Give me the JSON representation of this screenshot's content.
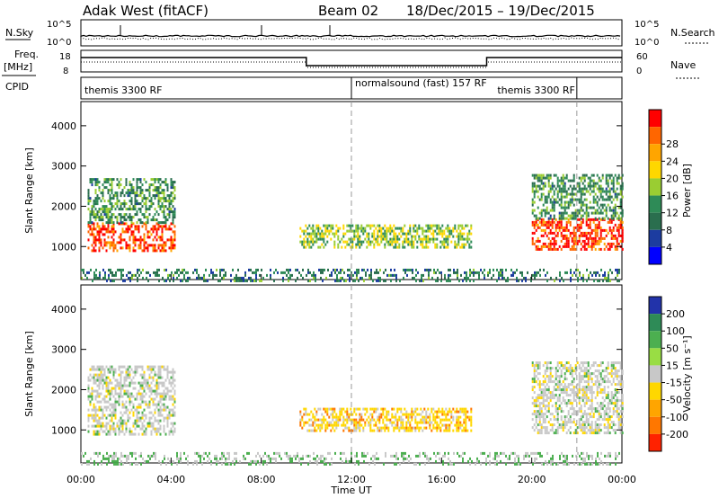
{
  "header": {
    "radar": "Adak West (fitACF)",
    "beam": "Beam 02",
    "date_range": "18/Dec/2015 – 19/Dec/2015"
  },
  "side_labels": {
    "nsky": "N.Sky",
    "nsearch": "N.Search",
    "freq_line1": "Freq.",
    "freq_line2": "[MHz]",
    "nave": "Nave",
    "cpid": "CPID"
  },
  "strip_ticks": {
    "noise_top_left": "10^5",
    "noise_bottom_left": "10^0",
    "noise_top_right": "10^5",
    "noise_bottom_right": "10^0",
    "freq_top": "18",
    "freq_bottom": "8",
    "nave_top": "60",
    "nave_bottom": "0"
  },
  "cpid_segments": [
    {
      "label": "themis 3300 RF",
      "start_hour": 0,
      "end_hour": 12
    },
    {
      "label": "normalsound (fast) 157 RF",
      "start_hour": 12,
      "end_hour": 22
    },
    {
      "label": "themis 3300 RF",
      "start_hour": 22,
      "end_hour": 24
    }
  ],
  "axes": {
    "xlabel": "Time UT",
    "ylabel": "Slant Range [km]",
    "x_ticks": [
      "00:00",
      "04:00",
      "08:00",
      "12:00",
      "16:00",
      "20:00",
      "00:00"
    ],
    "y_ticks": [
      "1000",
      "2000",
      "3000",
      "4000"
    ]
  },
  "colorbars": {
    "power": {
      "label": "Power [dB]",
      "ticks": [
        "4",
        "8",
        "12",
        "16",
        "20",
        "24",
        "28"
      ],
      "colors": [
        "#0000ff",
        "#1c3ca0",
        "#2a6e4e",
        "#2e8b57",
        "#9acd32",
        "#ffd700",
        "#ffa500",
        "#ff6600",
        "#ff0000"
      ]
    },
    "velocity": {
      "label": "Velocity [m s⁻¹]",
      "ticks": [
        "200",
        "100",
        "50",
        "15",
        "-15",
        "-50",
        "-100",
        "-200"
      ],
      "colors": [
        "#2233aa",
        "#2e8b57",
        "#4caf50",
        "#99dd44",
        "#c8c8c8",
        "#ffd700",
        "#ffa500",
        "#ff7700",
        "#ff2200"
      ]
    }
  },
  "chart_data": {
    "type": "heatmap",
    "title": "Adak West (fitACF)",
    "xlabel": "Time UT",
    "ylabel": "Slant Range [km]",
    "xlim_hours": [
      0,
      24
    ],
    "ylim_km": [
      180,
      4600
    ],
    "series": [
      {
        "name": "Power [dB]",
        "regions": [
          {
            "t_start": 0.3,
            "t_end": 4.2,
            "r_low": 900,
            "r_high": 1600,
            "level_db": 26
          },
          {
            "t_start": 0.3,
            "t_end": 4.2,
            "r_low": 1600,
            "r_high": 2700,
            "level_db": 10
          },
          {
            "t_start": 9.7,
            "t_end": 17.3,
            "r_low": 950,
            "r_high": 1550,
            "level_db": 14
          },
          {
            "t_start": 20.0,
            "t_end": 24.0,
            "r_low": 900,
            "r_high": 1700,
            "level_db": 26
          },
          {
            "t_start": 20.0,
            "t_end": 24.0,
            "r_low": 1700,
            "r_high": 2800,
            "level_db": 10
          },
          {
            "t_start": 0.0,
            "t_end": 24.0,
            "r_low": 180,
            "r_high": 450,
            "level_db": 8
          }
        ]
      },
      {
        "name": "Velocity [m s^-1]",
        "regions": [
          {
            "t_start": 0.3,
            "t_end": 4.2,
            "r_low": 900,
            "r_high": 2600,
            "level_ms": 0
          },
          {
            "t_start": 9.7,
            "t_end": 17.3,
            "r_low": 950,
            "r_high": 1550,
            "level_ms": -40
          },
          {
            "t_start": 20.0,
            "t_end": 24.0,
            "r_low": 900,
            "r_high": 2700,
            "level_ms": 0
          },
          {
            "t_start": 0.0,
            "t_end": 24.0,
            "r_low": 180,
            "r_high": 450,
            "level_ms": 20
          }
        ]
      }
    ],
    "cpid_change_hours": [
      12,
      22
    ]
  }
}
